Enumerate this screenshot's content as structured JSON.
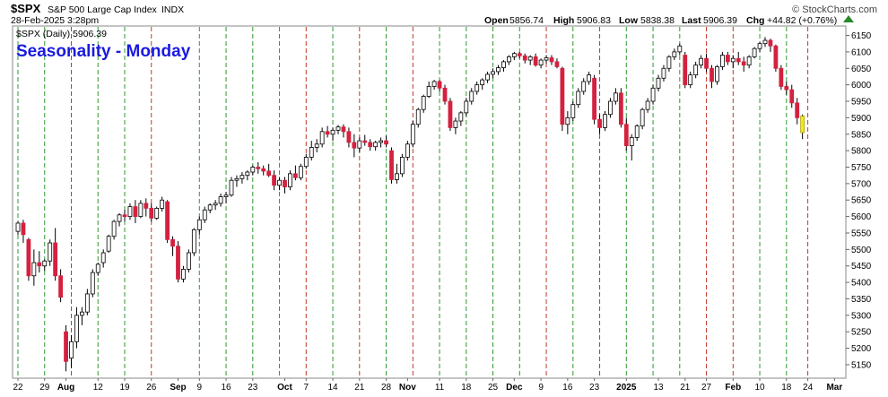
{
  "header": {
    "symbol": "$SPX",
    "name": "S&P 500 Large Cap Index",
    "exchange": "INDX",
    "date": "28-Feb-2025 3:28pm",
    "open_label": "Open",
    "open_value": "5856.74",
    "high_label": "High",
    "high_value": "5906.83",
    "low_label": "Low",
    "low_value": "5838.38",
    "last_label": "Last",
    "last_value": "5906.39",
    "chg_label": "Chg",
    "chg_value": "+44.82 (+0.76%)",
    "brand": "© StockCharts.com"
  },
  "legend": {
    "label": "$SPX (Daily) 5906.39"
  },
  "colors": {
    "up": "#ffffff",
    "down": "#d4213f",
    "green_line": "#2c9a2c",
    "red_line": "#c0392b",
    "title": "#1a1adf",
    "up_arrow": "#2a8a2a"
  },
  "chart_data": {
    "type": "candlestick",
    "title": "Seasonality - Monday",
    "ylim": [
      5120,
      6165
    ],
    "y_ticks": [
      5150,
      5200,
      5250,
      5300,
      5350,
      5400,
      5450,
      5500,
      5550,
      5600,
      5650,
      5700,
      5750,
      5800,
      5850,
      5900,
      5950,
      6000,
      6050,
      6100,
      6150
    ],
    "x_ticks": [
      {
        "label": "22",
        "i": 0
      },
      {
        "label": "29",
        "i": 5
      },
      {
        "label": "Aug",
        "i": 9
      },
      {
        "label": "12",
        "i": 15
      },
      {
        "label": "19",
        "i": 20
      },
      {
        "label": "26",
        "i": 25
      },
      {
        "label": "Sep",
        "i": 30
      },
      {
        "label": "9",
        "i": 34
      },
      {
        "label": "16",
        "i": 39
      },
      {
        "label": "23",
        "i": 44
      },
      {
        "label": "Oct",
        "i": 50
      },
      {
        "label": "7",
        "i": 54
      },
      {
        "label": "14",
        "i": 59
      },
      {
        "label": "21",
        "i": 64
      },
      {
        "label": "28",
        "i": 69
      },
      {
        "label": "Nov",
        "i": 73
      },
      {
        "label": "11",
        "i": 79
      },
      {
        "label": "18",
        "i": 84
      },
      {
        "label": "25",
        "i": 89
      },
      {
        "label": "Dec",
        "i": 93
      },
      {
        "label": "9",
        "i": 98
      },
      {
        "label": "16",
        "i": 103
      },
      {
        "label": "23",
        "i": 108
      },
      {
        "label": "2025",
        "i": 114
      },
      {
        "label": "13",
        "i": 120
      },
      {
        "label": "21",
        "i": 125
      },
      {
        "label": "27",
        "i": 129
      },
      {
        "label": "Feb",
        "i": 134
      },
      {
        "label": "10",
        "i": 139
      },
      {
        "label": "18",
        "i": 144
      },
      {
        "label": "24",
        "i": 148
      },
      {
        "label": "Mar",
        "i": 153
      }
    ],
    "monday_lines": [
      {
        "i": 0,
        "color": "green"
      },
      {
        "i": 5,
        "color": "green"
      },
      {
        "i": 10,
        "color": "red"
      },
      {
        "i": 15,
        "color": "green"
      },
      {
        "i": 20,
        "color": "green"
      },
      {
        "i": 25,
        "color": "red"
      },
      {
        "i": 34,
        "color": "green"
      },
      {
        "i": 39,
        "color": "green"
      },
      {
        "i": 44,
        "color": "green"
      },
      {
        "i": 49,
        "color": "green"
      },
      {
        "i": 54,
        "color": "red"
      },
      {
        "i": 59,
        "color": "green"
      },
      {
        "i": 64,
        "color": "red"
      },
      {
        "i": 69,
        "color": "green"
      },
      {
        "i": 74,
        "color": "red"
      },
      {
        "i": 79,
        "color": "green"
      },
      {
        "i": 84,
        "color": "green"
      },
      {
        "i": 89,
        "color": "green"
      },
      {
        "i": 94,
        "color": "green"
      },
      {
        "i": 99,
        "color": "red"
      },
      {
        "i": 104,
        "color": "green"
      },
      {
        "i": 109,
        "color": "red"
      },
      {
        "i": 114,
        "color": "green"
      },
      {
        "i": 119,
        "color": "green"
      },
      {
        "i": 124,
        "color": "green"
      },
      {
        "i": 129,
        "color": "red"
      },
      {
        "i": 134,
        "color": "red"
      },
      {
        "i": 139,
        "color": "green"
      },
      {
        "i": 144,
        "color": "green"
      },
      {
        "i": 148,
        "color": "red"
      }
    ],
    "candles": [
      [
        5555,
        5585,
        5545,
        5580
      ],
      [
        5580,
        5590,
        5520,
        5545
      ],
      [
        5530,
        5535,
        5405,
        5420
      ],
      [
        5420,
        5500,
        5390,
        5460
      ],
      [
        5460,
        5495,
        5430,
        5450
      ],
      [
        5450,
        5470,
        5435,
        5465
      ],
      [
        5465,
        5530,
        5450,
        5520
      ],
      [
        5520,
        5565,
        5405,
        5420
      ],
      [
        5420,
        5440,
        5340,
        5355
      ],
      [
        5250,
        5270,
        5130,
        5160
      ],
      [
        5170,
        5240,
        5140,
        5220
      ],
      [
        5220,
        5325,
        5200,
        5300
      ],
      [
        5300,
        5325,
        5270,
        5310
      ],
      [
        5310,
        5380,
        5300,
        5365
      ],
      [
        5365,
        5440,
        5355,
        5430
      ],
      [
        5430,
        5460,
        5420,
        5455
      ],
      [
        5460,
        5500,
        5445,
        5490
      ],
      [
        5495,
        5545,
        5490,
        5540
      ],
      [
        5540,
        5590,
        5530,
        5585
      ],
      [
        5585,
        5610,
        5570,
        5605
      ],
      [
        5605,
        5620,
        5585,
        5600
      ],
      [
        5600,
        5640,
        5590,
        5630
      ],
      [
        5630,
        5650,
        5580,
        5600
      ],
      [
        5600,
        5650,
        5595,
        5640
      ],
      [
        5640,
        5655,
        5600,
        5625
      ],
      [
        5625,
        5640,
        5585,
        5595
      ],
      [
        5595,
        5630,
        5590,
        5625
      ],
      [
        5625,
        5660,
        5615,
        5650
      ],
      [
        5645,
        5650,
        5520,
        5530
      ],
      [
        5530,
        5540,
        5480,
        5510
      ],
      [
        5510,
        5525,
        5400,
        5410
      ],
      [
        5410,
        5450,
        5400,
        5440
      ],
      [
        5440,
        5500,
        5430,
        5490
      ],
      [
        5490,
        5565,
        5480,
        5560
      ],
      [
        5560,
        5600,
        5545,
        5590
      ],
      [
        5590,
        5630,
        5580,
        5620
      ],
      [
        5620,
        5640,
        5610,
        5635
      ],
      [
        5635,
        5650,
        5620,
        5640
      ],
      [
        5640,
        5670,
        5630,
        5660
      ],
      [
        5660,
        5675,
        5640,
        5665
      ],
      [
        5665,
        5720,
        5660,
        5710
      ],
      [
        5710,
        5725,
        5690,
        5715
      ],
      [
        5715,
        5735,
        5700,
        5725
      ],
      [
        5725,
        5740,
        5710,
        5735
      ],
      [
        5735,
        5755,
        5725,
        5750
      ],
      [
        5750,
        5765,
        5730,
        5745
      ],
      [
        5745,
        5755,
        5725,
        5738
      ],
      [
        5738,
        5760,
        5720,
        5725
      ],
      [
        5725,
        5740,
        5680,
        5695
      ],
      [
        5695,
        5720,
        5680,
        5710
      ],
      [
        5710,
        5720,
        5670,
        5690
      ],
      [
        5690,
        5740,
        5680,
        5730
      ],
      [
        5730,
        5755,
        5710,
        5718
      ],
      [
        5718,
        5760,
        5710,
        5752
      ],
      [
        5752,
        5790,
        5745,
        5780
      ],
      [
        5780,
        5830,
        5770,
        5810
      ],
      [
        5810,
        5835,
        5795,
        5820
      ],
      [
        5820,
        5870,
        5810,
        5858
      ],
      [
        5858,
        5875,
        5840,
        5850
      ],
      [
        5850,
        5870,
        5830,
        5862
      ],
      [
        5862,
        5878,
        5850,
        5872
      ],
      [
        5872,
        5880,
        5840,
        5858
      ],
      [
        5858,
        5870,
        5810,
        5825
      ],
      [
        5825,
        5850,
        5780,
        5808
      ],
      [
        5808,
        5840,
        5795,
        5830
      ],
      [
        5830,
        5848,
        5815,
        5825
      ],
      [
        5825,
        5835,
        5800,
        5812
      ],
      [
        5812,
        5830,
        5800,
        5825
      ],
      [
        5825,
        5840,
        5810,
        5830
      ],
      [
        5830,
        5845,
        5810,
        5820
      ],
      [
        5800,
        5810,
        5700,
        5712
      ],
      [
        5712,
        5760,
        5700,
        5730
      ],
      [
        5730,
        5790,
        5720,
        5780
      ],
      [
        5780,
        5830,
        5770,
        5820
      ],
      [
        5820,
        5890,
        5810,
        5880
      ],
      [
        5880,
        5930,
        5870,
        5925
      ],
      [
        5925,
        5970,
        5915,
        5965
      ],
      [
        5965,
        6010,
        5960,
        5995
      ],
      [
        5995,
        6015,
        5985,
        6010
      ],
      [
        6010,
        6015,
        5980,
        5990
      ],
      [
        5990,
        6000,
        5940,
        5950
      ],
      [
        5950,
        5960,
        5860,
        5870
      ],
      [
        5870,
        5900,
        5850,
        5890
      ],
      [
        5890,
        5920,
        5875,
        5915
      ],
      [
        5915,
        5960,
        5905,
        5950
      ],
      [
        5950,
        5990,
        5940,
        5980
      ],
      [
        5980,
        6010,
        5970,
        6000
      ],
      [
        6000,
        6020,
        5985,
        6015
      ],
      [
        6015,
        6040,
        6005,
        6032
      ],
      [
        6032,
        6050,
        6020,
        6040
      ],
      [
        6040,
        6060,
        6030,
        6052
      ],
      [
        6052,
        6075,
        6040,
        6070
      ],
      [
        6070,
        6090,
        6060,
        6085
      ],
      [
        6085,
        6100,
        6075,
        6095
      ],
      [
        6095,
        6100,
        6080,
        6088
      ],
      [
        6088,
        6095,
        6065,
        6075
      ],
      [
        6075,
        6090,
        6060,
        6085
      ],
      [
        6085,
        6095,
        6055,
        6060
      ],
      [
        6060,
        6080,
        6050,
        6075
      ],
      [
        6075,
        6090,
        6065,
        6082
      ],
      [
        6082,
        6090,
        6060,
        6070
      ],
      [
        6070,
        6080,
        6050,
        6055
      ],
      [
        6050,
        6055,
        5860,
        5880
      ],
      [
        5880,
        5920,
        5850,
        5900
      ],
      [
        5900,
        5950,
        5890,
        5940
      ],
      [
        5940,
        5990,
        5930,
        5980
      ],
      [
        5980,
        6020,
        5970,
        6010
      ],
      [
        6010,
        6040,
        6000,
        6030
      ],
      [
        6020,
        6030,
        5880,
        5895
      ],
      [
        5895,
        5910,
        5850,
        5870
      ],
      [
        5870,
        5920,
        5860,
        5910
      ],
      [
        5910,
        5960,
        5900,
        5950
      ],
      [
        5950,
        5990,
        5940,
        5975
      ],
      [
        5975,
        5990,
        5870,
        5880
      ],
      [
        5880,
        5900,
        5800,
        5815
      ],
      [
        5815,
        5850,
        5770,
        5840
      ],
      [
        5840,
        5880,
        5830,
        5875
      ],
      [
        5875,
        5930,
        5865,
        5925
      ],
      [
        5925,
        5960,
        5915,
        5950
      ],
      [
        5950,
        6000,
        5940,
        5990
      ],
      [
        5990,
        6030,
        5980,
        6020
      ],
      [
        6020,
        6060,
        6010,
        6050
      ],
      [
        6050,
        6090,
        6040,
        6085
      ],
      [
        6085,
        6110,
        6075,
        6100
      ],
      [
        6100,
        6125,
        6090,
        6118
      ],
      [
        6090,
        6100,
        5990,
        6000
      ],
      [
        6000,
        6040,
        5990,
        6030
      ],
      [
        6030,
        6070,
        6020,
        6060
      ],
      [
        6060,
        6090,
        6050,
        6080
      ],
      [
        6080,
        6095,
        6040,
        6050
      ],
      [
        6050,
        6060,
        5990,
        6010
      ],
      [
        6010,
        6060,
        6000,
        6055
      ],
      [
        6055,
        6100,
        6045,
        6090
      ],
      [
        6090,
        6100,
        6060,
        6070
      ],
      [
        6070,
        6090,
        6050,
        6080
      ],
      [
        6080,
        6100,
        6060,
        6070
      ],
      [
        6070,
        6085,
        6040,
        6060
      ],
      [
        6060,
        6090,
        6050,
        6085
      ],
      [
        6085,
        6115,
        6080,
        6110
      ],
      [
        6110,
        6130,
        6100,
        6125
      ],
      [
        6125,
        6145,
        6115,
        6135
      ],
      [
        6135,
        6140,
        6100,
        6118
      ],
      [
        6118,
        6122,
        6040,
        6050
      ],
      [
        6050,
        6060,
        5985,
        5995
      ],
      [
        5995,
        6010,
        5970,
        5985
      ],
      [
        5985,
        6000,
        5930,
        5945
      ],
      [
        5945,
        5960,
        5880,
        5900
      ],
      [
        5855,
        5910,
        5835,
        5905
      ]
    ]
  }
}
